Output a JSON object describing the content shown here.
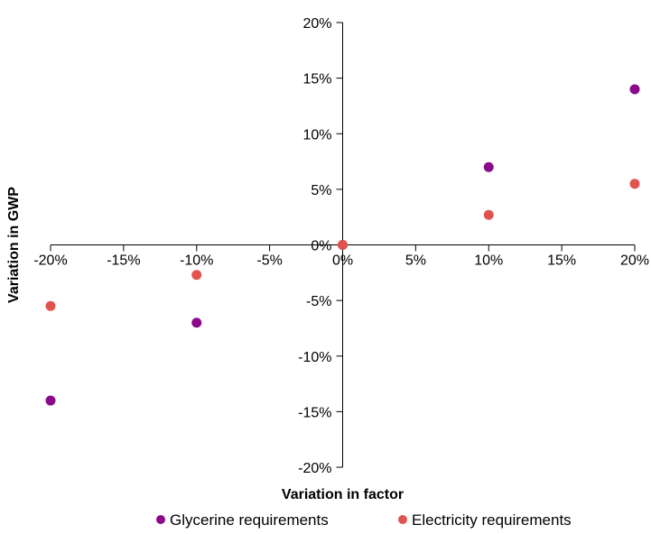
{
  "chart_data": {
    "type": "scatter",
    "title": "",
    "xlabel": "Variation in factor",
    "ylabel": "Variation in GWP",
    "xlim": [
      -0.2,
      0.2
    ],
    "ylim": [
      -0.2,
      0.2
    ],
    "x_ticks": [
      -0.2,
      -0.15,
      -0.1,
      -0.05,
      0,
      0.05,
      0.1,
      0.15,
      0.2
    ],
    "x_tick_labels": [
      "-20%",
      "-15%",
      "-10%",
      "-5%",
      "0%",
      "5%",
      "10%",
      "15%",
      "20%"
    ],
    "y_ticks": [
      0.2,
      0.15,
      0.1,
      0.05,
      0,
      -0.05,
      -0.1,
      -0.15,
      -0.2
    ],
    "y_tick_labels": [
      "20%",
      "15%",
      "10%",
      "5%",
      "0%",
      "-5%",
      "-10%",
      "-15%",
      "-20%"
    ],
    "grid": false,
    "legend_position": "bottom",
    "series": [
      {
        "name": "Glycerine requirements",
        "color": "#8B0A8C",
        "x": [
          -0.2,
          -0.1,
          0,
          0.1,
          0.2
        ],
        "y": [
          -0.14,
          -0.07,
          0,
          0.07,
          0.14
        ]
      },
      {
        "name": "Electricity requirements",
        "color": "#E0534E",
        "x": [
          -0.2,
          -0.1,
          0,
          0.1,
          0.2
        ],
        "y": [
          -0.055,
          -0.027,
          0,
          0.027,
          0.055
        ]
      }
    ]
  }
}
